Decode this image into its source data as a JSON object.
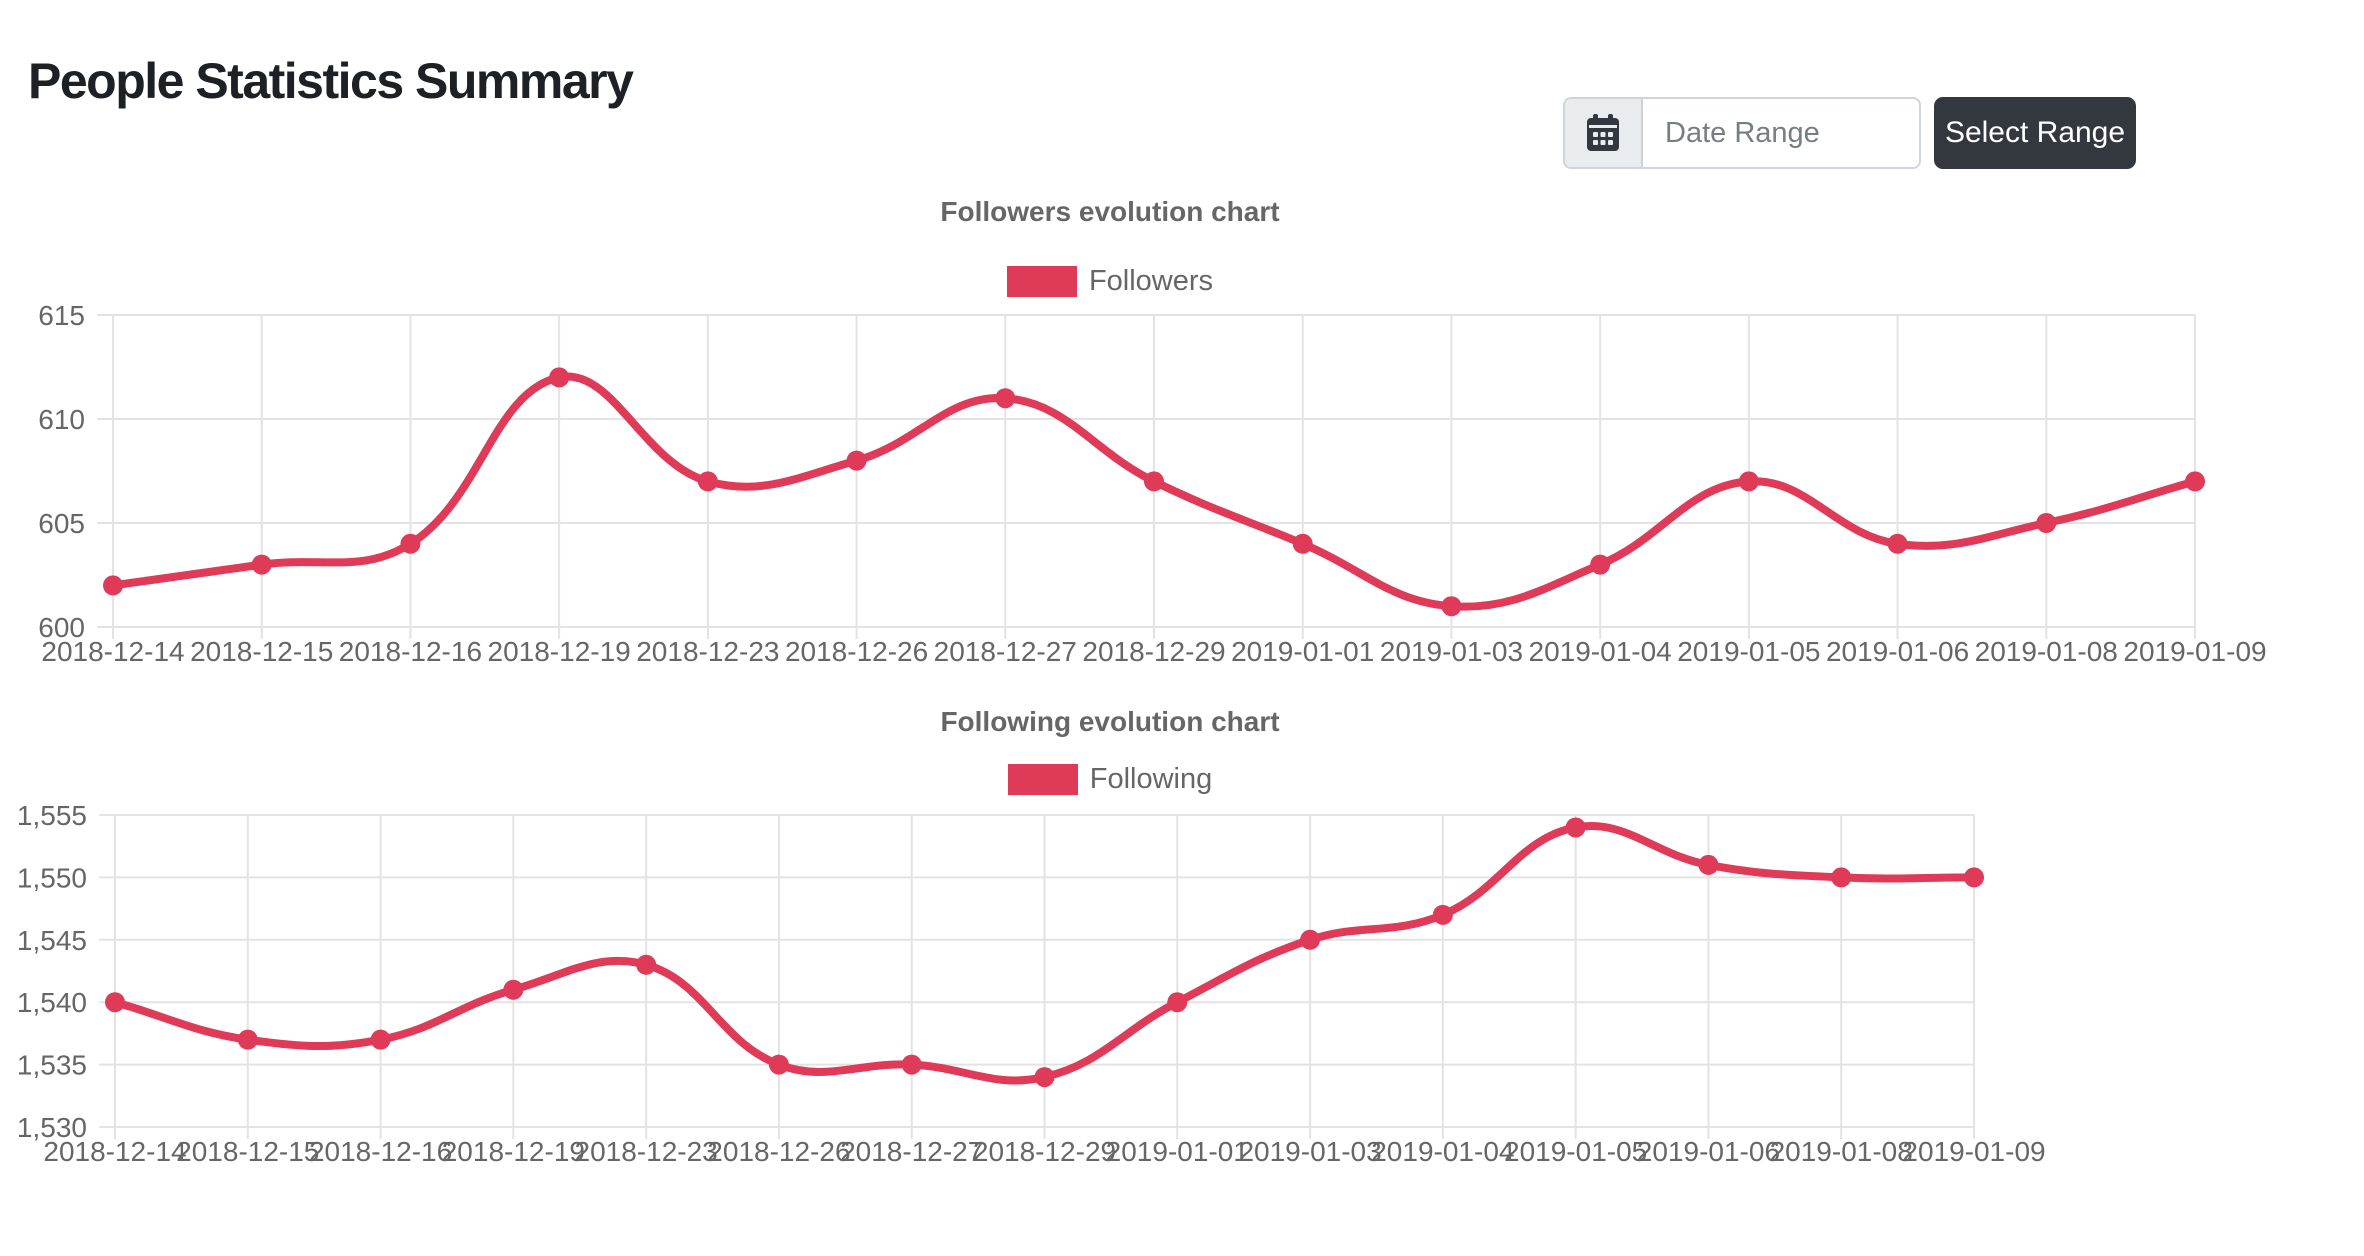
{
  "page": {
    "title": "People Statistics Summary"
  },
  "controls": {
    "date_range_placeholder": "Date Range",
    "select_range_label": "Select Range",
    "calendar_icon": "calendar-icon"
  },
  "colors": {
    "accent": "#df3a57",
    "grid": "#e3e3e3",
    "axis_text": "#666666",
    "title_text": "#666666",
    "button_bg": "#32383e",
    "prepend_bg": "#e9ecef"
  },
  "chart_data": [
    {
      "type": "line",
      "title": "Followers evolution chart",
      "legend_position": "top",
      "grid": true,
      "color": "#df3a57",
      "categories": [
        "2018-12-14",
        "2018-12-15",
        "2018-12-16",
        "2018-12-19",
        "2018-12-23",
        "2018-12-26",
        "2018-12-27",
        "2018-12-29",
        "2019-01-01",
        "2019-01-03",
        "2019-01-04",
        "2019-01-05",
        "2019-01-06",
        "2019-01-08",
        "2019-01-09"
      ],
      "series": [
        {
          "name": "Followers",
          "values": [
            602,
            603,
            604,
            612,
            607,
            608,
            611,
            607,
            604,
            601,
            603,
            607,
            604,
            605,
            607
          ]
        }
      ],
      "ylim": [
        600,
        615
      ],
      "yticks": [
        600,
        605,
        610,
        615
      ],
      "xlabel": "",
      "ylabel": ""
    },
    {
      "type": "line",
      "title": "Following evolution chart",
      "legend_position": "top",
      "grid": true,
      "color": "#df3a57",
      "categories": [
        "2018-12-14",
        "2018-12-15",
        "2018-12-16",
        "2018-12-19",
        "2018-12-23",
        "2018-12-26",
        "2018-12-27",
        "2018-12-29",
        "2019-01-01",
        "2019-01-03",
        "2019-01-04",
        "2019-01-05",
        "2019-01-06",
        "2019-01-08",
        "2019-01-09"
      ],
      "series": [
        {
          "name": "Following",
          "values": [
            1540,
            1537,
            1537,
            1541,
            1543,
            1535,
            1535,
            1534,
            1540,
            1545,
            1547,
            1554,
            1551,
            1550,
            1550
          ]
        }
      ],
      "ylim": [
        1530,
        1555
      ],
      "yticks": [
        1530,
        1535,
        1540,
        1545,
        1550,
        1555
      ],
      "xlabel": "",
      "ylabel": ""
    }
  ]
}
